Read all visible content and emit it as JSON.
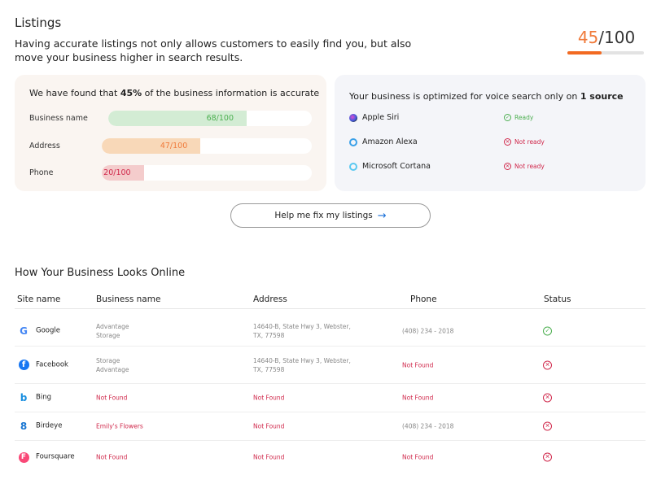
{
  "header": {
    "title": "Listings",
    "description": "Having accurate listings not only allows customers to easily find you, but also move your business higher in search results.",
    "score_value": "45",
    "score_total": "/100",
    "score_percent": 45
  },
  "accuracy": {
    "title_pre": "We have found that ",
    "title_bold": "45%",
    "title_post": " of the business information is accurate",
    "bars": [
      {
        "label": "Business name",
        "value_text": "68/100",
        "value": 68,
        "color": "#d3ecd4",
        "text_color": "#4caf50"
      },
      {
        "label": "Address",
        "value_text": "47/100",
        "value": 47,
        "color": "#f8d8b8",
        "text_color": "#f07a3a"
      },
      {
        "label": "Phone",
        "value_text": "20/100",
        "value": 20,
        "color": "#f4cccc",
        "text_color": "#d0284b"
      }
    ]
  },
  "voice": {
    "title_pre": "Your business is optimized for voice search only on ",
    "title_bold": "1 source",
    "items": [
      {
        "name": "Apple Siri",
        "status": "Ready",
        "ready": true
      },
      {
        "name": "Amazon Alexa",
        "status": "Not ready",
        "ready": false
      },
      {
        "name": "Microsoft Cortana",
        "status": "Not ready",
        "ready": false
      }
    ]
  },
  "fix_button": "Help me fix my listings",
  "table": {
    "title": "How Your Business Looks Online",
    "headers": [
      "Site name",
      "Business name",
      "Address",
      "Phone",
      "Status"
    ],
    "rows": [
      {
        "site": "Google",
        "icon": "google-icon",
        "business": [
          "Advantage",
          "Storage"
        ],
        "address": [
          "14640-B, State Hwy 3, Webster,",
          "TX, 77598"
        ],
        "phone": "(408) 234 - 2018",
        "status": "ok"
      },
      {
        "site": "Facebook",
        "icon": "facebook-icon",
        "business": [
          "Storage",
          "Advantage"
        ],
        "address": [
          "14640-B, State Hwy 3, Webster,",
          "TX, 77598"
        ],
        "phone": "Not Found",
        "status": "error"
      },
      {
        "site": "Bing",
        "icon": "bing-icon",
        "business": [
          "Not Found"
        ],
        "address": [
          "Not Found"
        ],
        "phone": "Not Found",
        "status": "error"
      },
      {
        "site": "Birdeye",
        "icon": "birdeye-icon",
        "business": [
          "Emily's Flowers"
        ],
        "address": [
          "Not Found"
        ],
        "phone": "(408) 234 - 2018",
        "status": "error"
      },
      {
        "site": "Foursquare",
        "icon": "foursquare-icon",
        "business": [
          "Not Found"
        ],
        "address": [
          "Not Found"
        ],
        "phone": "Not Found",
        "status": "error"
      }
    ]
  },
  "colors": {
    "accent": "#f26a21",
    "ok": "#4caf50",
    "error": "#d0284b"
  }
}
